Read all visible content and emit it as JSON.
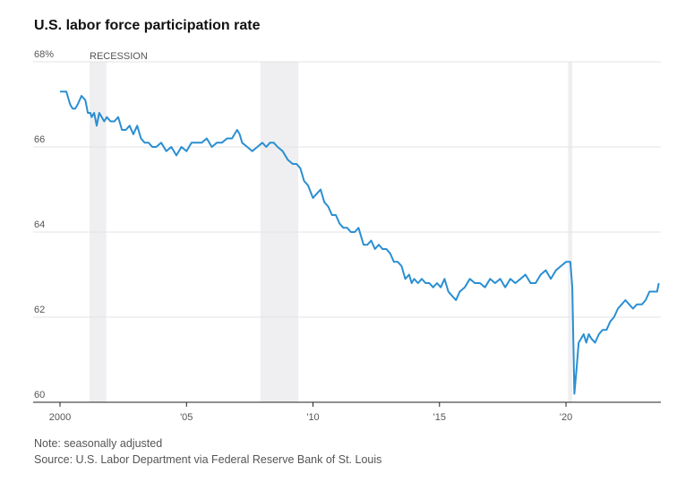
{
  "title": "U.S. labor force participation rate",
  "notes": {
    "note": "Note: seasonally adjusted",
    "source": "Source: U.S. Labor Department via Federal Reserve Bank of St. Louis"
  },
  "recession_label": "RECESSION",
  "chart_data": {
    "type": "line",
    "title": "U.S. labor force participation rate",
    "xlabel": "",
    "ylabel": "",
    "ylim": [
      60,
      68
    ],
    "xlim": [
      2000,
      2023.75
    ],
    "y_ticks": [
      {
        "value": 68,
        "label": "68%"
      },
      {
        "value": 66,
        "label": "66"
      },
      {
        "value": 64,
        "label": "64"
      },
      {
        "value": 62,
        "label": "62"
      },
      {
        "value": 60,
        "label": "60"
      }
    ],
    "x_ticks": [
      {
        "value": 2000,
        "label": "2000"
      },
      {
        "value": 2005,
        "label": "'05"
      },
      {
        "value": 2010,
        "label": "'10"
      },
      {
        "value": 2015,
        "label": "'15"
      },
      {
        "value": 2020,
        "label": "'20"
      }
    ],
    "grid": true,
    "line_color": "#2b8fd1",
    "recession_color": "#efeff1",
    "recessions": [
      {
        "start": 2001.17,
        "end": 2001.83
      },
      {
        "start": 2007.92,
        "end": 2009.42
      },
      {
        "start": 2020.08,
        "end": 2020.25
      }
    ],
    "series": [
      {
        "x": [
          2000.0,
          2000.25,
          2000.4,
          2000.5,
          2000.6,
          2000.7,
          2000.85,
          2001.0,
          2001.1,
          2001.2,
          2001.25,
          2001.35,
          2001.45,
          2001.55,
          2001.65,
          2001.75,
          2001.85,
          2002.0,
          2002.15,
          2002.3,
          2002.45,
          2002.6,
          2002.75,
          2002.9,
          2003.05,
          2003.2,
          2003.35,
          2003.5,
          2003.65,
          2003.8,
          2004.0,
          2004.2,
          2004.4,
          2004.6,
          2004.8,
          2005.0,
          2005.2,
          2005.4,
          2005.6,
          2005.8,
          2006.0,
          2006.2,
          2006.4,
          2006.6,
          2006.8,
          2007.0,
          2007.1,
          2007.2,
          2007.4,
          2007.6,
          2007.8,
          2008.0,
          2008.15,
          2008.3,
          2008.45,
          2008.6,
          2008.8,
          2009.0,
          2009.2,
          2009.35,
          2009.5,
          2009.65,
          2009.8,
          2010.0,
          2010.15,
          2010.3,
          2010.45,
          2010.6,
          2010.75,
          2010.9,
          2011.05,
          2011.2,
          2011.35,
          2011.5,
          2011.65,
          2011.8,
          2012.0,
          2012.15,
          2012.3,
          2012.45,
          2012.6,
          2012.75,
          2012.9,
          2013.05,
          2013.2,
          2013.35,
          2013.5,
          2013.65,
          2013.8,
          2013.9,
          2014.0,
          2014.15,
          2014.3,
          2014.45,
          2014.6,
          2014.75,
          2014.9,
          2015.05,
          2015.2,
          2015.35,
          2015.5,
          2015.65,
          2015.8,
          2016.0,
          2016.2,
          2016.4,
          2016.6,
          2016.8,
          2017.0,
          2017.2,
          2017.4,
          2017.6,
          2017.8,
          2018.0,
          2018.2,
          2018.4,
          2018.6,
          2018.8,
          2019.0,
          2019.2,
          2019.4,
          2019.6,
          2019.8,
          2020.0,
          2020.1,
          2020.17,
          2020.25,
          2020.33,
          2020.42,
          2020.5,
          2020.6,
          2020.7,
          2020.8,
          2020.9,
          2021.0,
          2021.15,
          2021.3,
          2021.45,
          2021.6,
          2021.75,
          2021.9,
          2022.05,
          2022.2,
          2022.35,
          2022.5,
          2022.65,
          2022.8,
          2023.0,
          2023.15,
          2023.3,
          2023.45,
          2023.6,
          2023.67
        ],
        "y": [
          67.3,
          67.3,
          67.0,
          66.9,
          66.9,
          67.0,
          67.2,
          67.1,
          66.8,
          66.8,
          66.7,
          66.8,
          66.5,
          66.8,
          66.7,
          66.6,
          66.7,
          66.6,
          66.6,
          66.7,
          66.4,
          66.4,
          66.5,
          66.3,
          66.5,
          66.2,
          66.1,
          66.1,
          66.0,
          66.0,
          66.1,
          65.9,
          66.0,
          65.8,
          66.0,
          65.9,
          66.1,
          66.1,
          66.1,
          66.2,
          66.0,
          66.1,
          66.1,
          66.2,
          66.2,
          66.4,
          66.3,
          66.1,
          66.0,
          65.9,
          66.0,
          66.1,
          66.0,
          66.1,
          66.1,
          66.0,
          65.9,
          65.7,
          65.6,
          65.6,
          65.5,
          65.2,
          65.1,
          64.8,
          64.9,
          65.0,
          64.7,
          64.6,
          64.4,
          64.4,
          64.2,
          64.1,
          64.1,
          64.0,
          64.0,
          64.1,
          63.7,
          63.7,
          63.8,
          63.6,
          63.7,
          63.6,
          63.6,
          63.5,
          63.3,
          63.3,
          63.2,
          62.9,
          63.0,
          62.8,
          62.9,
          62.8,
          62.9,
          62.8,
          62.8,
          62.7,
          62.8,
          62.7,
          62.9,
          62.6,
          62.5,
          62.4,
          62.6,
          62.7,
          62.9,
          62.8,
          62.8,
          62.7,
          62.9,
          62.8,
          62.9,
          62.7,
          62.9,
          62.8,
          62.9,
          63.0,
          62.8,
          62.8,
          63.0,
          63.1,
          62.9,
          63.1,
          63.2,
          63.3,
          63.3,
          63.3,
          62.7,
          60.2,
          60.8,
          61.4,
          61.5,
          61.6,
          61.4,
          61.6,
          61.5,
          61.4,
          61.6,
          61.7,
          61.7,
          61.9,
          62.0,
          62.2,
          62.3,
          62.4,
          62.3,
          62.2,
          62.3,
          62.3,
          62.4,
          62.6,
          62.6,
          62.6,
          62.8
        ]
      }
    ]
  }
}
